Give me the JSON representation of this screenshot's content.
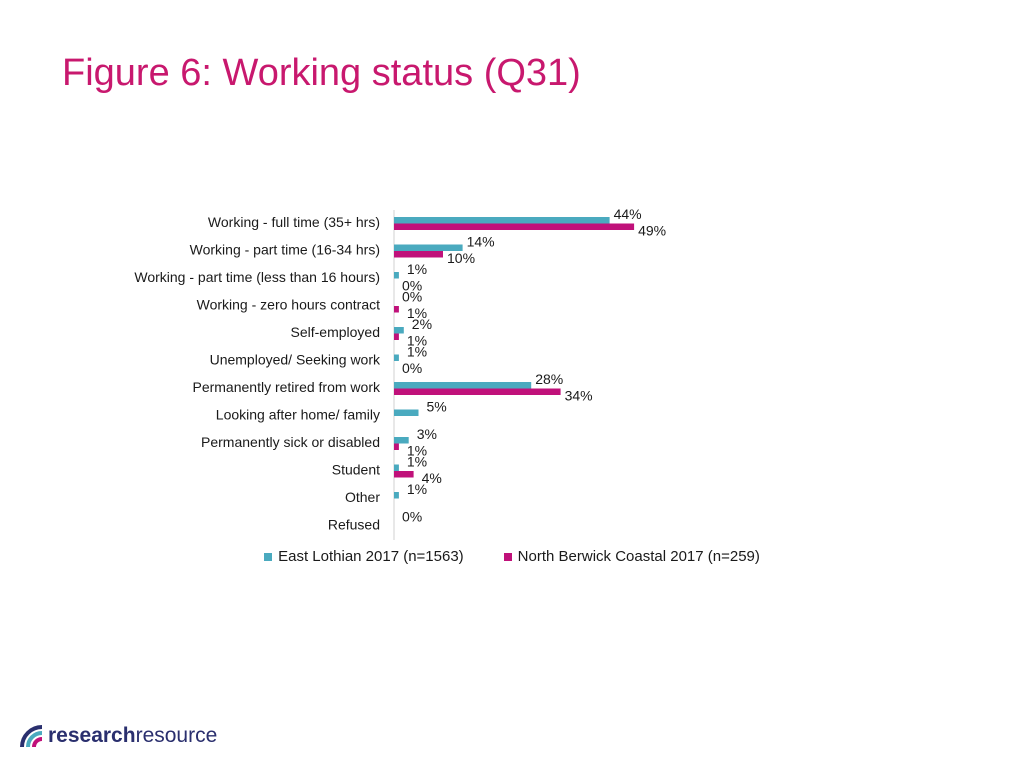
{
  "page": {
    "title": "Figure 6: Working status (Q31)"
  },
  "colors": {
    "title": "#c8186e",
    "series1": "#4aaabf",
    "series2": "#c0117a",
    "logo": "#2a2f6e"
  },
  "chart_data": {
    "type": "bar",
    "orientation": "horizontal",
    "title": "Figure 6: Working status (Q31)",
    "categories": [
      "Working - full time (35+ hrs)",
      "Working - part time (16-34 hrs)",
      "Working - part time (less than 16 hours)",
      "Working - zero hours contract",
      "Self-employed",
      "Unemployed/ Seeking work",
      "Permanently retired from work",
      "Looking after home/ family",
      "Permanently sick or disabled",
      "Student",
      "Other",
      "Refused"
    ],
    "series": [
      {
        "name": "East Lothian 2017 (n=1563)",
        "values": [
          44,
          14,
          1,
          0,
          2,
          1,
          28,
          5,
          3,
          1,
          1,
          0
        ],
        "labels": [
          "44%",
          "14%",
          "1%",
          "0%",
          "2%",
          "1%",
          "28%",
          "5%",
          "3%",
          "1%",
          "1%",
          "0%"
        ]
      },
      {
        "name": "North Berwick Coastal 2017 (n=259)",
        "values": [
          49,
          10,
          0,
          1,
          1,
          0,
          34,
          null,
          1,
          4,
          null,
          null
        ],
        "labels": [
          "49%",
          "10%",
          "0%",
          "1%",
          "1%",
          "0%",
          "34%",
          "",
          "1%",
          "4%",
          "",
          ""
        ]
      }
    ],
    "xlim": [
      0,
      100
    ],
    "grid": false,
    "legend": "bottom"
  },
  "logo": {
    "part1": "research",
    "part2": "resource"
  }
}
